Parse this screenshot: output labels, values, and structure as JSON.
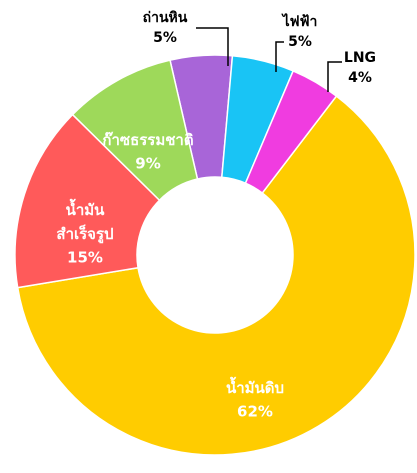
{
  "chart_data": {
    "type": "donut",
    "categories": [
      "ถ่านหิน",
      "ไฟฟ้า",
      "LNG",
      "น้ำมันดิบ",
      "น้ำมัน\nสำเร็จรูป",
      "ก๊าซธรรมชาติ"
    ],
    "values": [
      5,
      5,
      4,
      62,
      15,
      9
    ],
    "value_labels": [
      "5%",
      "5%",
      "4%",
      "62%",
      "15%",
      "9%"
    ],
    "colors": [
      "#a865d8",
      "#19c4f5",
      "#f03ce0",
      "#ffcc00",
      "#ff5a5a",
      "#9ed95a"
    ]
  }
}
